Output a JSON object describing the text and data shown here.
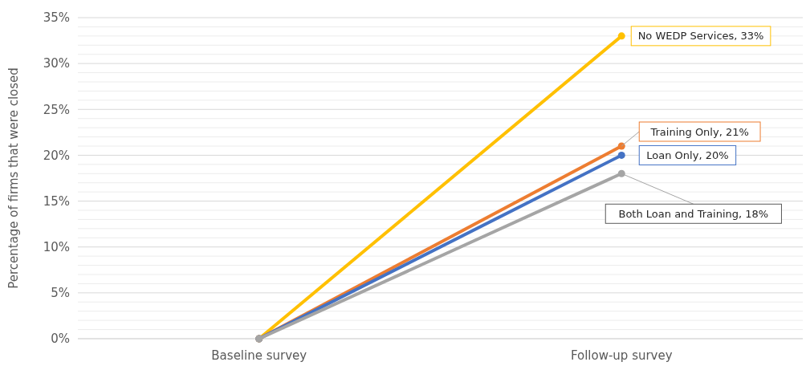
{
  "chart_data": {
    "type": "line",
    "ylabel": "Percentage of firms that were closed",
    "categories": [
      "Baseline survey",
      "Follow-up survey"
    ],
    "series": [
      {
        "color": "#ffc000",
        "values": [
          0,
          33
        ]
      },
      {
        "color": "#ed7d31",
        "values": [
          0,
          21
        ]
      },
      {
        "color": "#4472c4",
        "values": [
          0,
          20
        ]
      },
      {
        "color": "#a5a5a5",
        "values": [
          0,
          18
        ]
      }
    ],
    "ylim": [
      0,
      35
    ],
    "yticks": [
      {
        "value": 0,
        "label": "0%"
      },
      {
        "value": 1,
        "label": null
      },
      {
        "value": 2,
        "label": null
      },
      {
        "value": 3,
        "label": null
      },
      {
        "value": 4,
        "label": null
      },
      {
        "value": 5,
        "label": "5%"
      },
      {
        "value": 6,
        "label": null
      },
      {
        "value": 7,
        "label": null
      },
      {
        "value": 8,
        "label": null
      },
      {
        "value": 9,
        "label": null
      },
      {
        "value": 10,
        "label": "10%"
      },
      {
        "value": 11,
        "label": null
      },
      {
        "value": 12,
        "label": null
      },
      {
        "value": 13,
        "label": null
      },
      {
        "value": 14,
        "label": null
      },
      {
        "value": 15,
        "label": "15%"
      },
      {
        "value": 16,
        "label": null
      },
      {
        "value": 17,
        "label": null
      },
      {
        "value": 18,
        "label": null
      },
      {
        "value": 19,
        "label": null
      },
      {
        "value": 20,
        "label": "20%"
      },
      {
        "value": 21,
        "label": null
      },
      {
        "value": 22,
        "label": null
      },
      {
        "value": 23,
        "label": null
      },
      {
        "value": 24,
        "label": null
      },
      {
        "value": 25,
        "label": "25%"
      },
      {
        "value": 26,
        "label": null
      },
      {
        "value": 27,
        "label": null
      },
      {
        "value": 28,
        "label": null
      },
      {
        "value": 29,
        "label": null
      },
      {
        "value": 30,
        "label": "30%"
      },
      {
        "value": 31,
        "label": null
      },
      {
        "value": 32,
        "label": null
      },
      {
        "value": 33,
        "label": null
      },
      {
        "value": 34,
        "label": null
      },
      {
        "value": 35,
        "label": "35%"
      }
    ],
    "grid": "y",
    "marker": "circle",
    "line_style": "solid",
    "annotations": [
      {
        "text": "No WEDP Services, 33%",
        "x": "Follow-up survey",
        "y": 33
      },
      {
        "text": "Training Only, 21%",
        "x": "Follow-up survey",
        "y": 21
      },
      {
        "text": "Loan Only, 20%",
        "x": "Follow-up survey",
        "y": 20
      },
      {
        "text": "Both Loan and Training, 18%",
        "x": "Follow-up survey",
        "y": 18
      }
    ]
  }
}
